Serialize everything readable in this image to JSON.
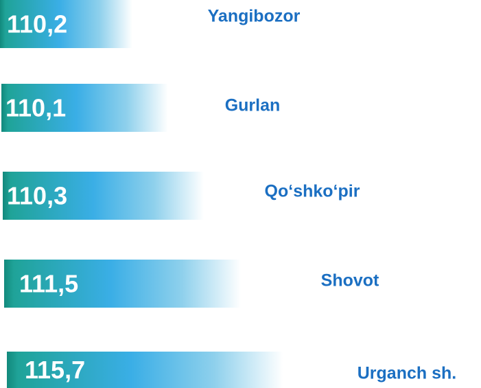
{
  "chart_data": {
    "type": "bar",
    "categories": [
      "Yangibozor",
      "Gurlan",
      "Qo‘shko‘pir",
      "Shovot",
      "Urganch sh."
    ],
    "values": [
      110.2,
      110.1,
      110.3,
      111.5,
      115.7
    ],
    "value_labels": [
      "110,2",
      "110,1",
      "110,3",
      "111,5",
      "115,7"
    ]
  }
}
